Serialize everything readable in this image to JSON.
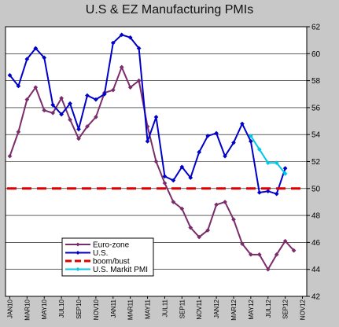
{
  "chart_data": {
    "type": "line",
    "title": "U.S & EZ Manufacturing PMIs",
    "xlabel": "",
    "ylabel": "",
    "x": [
      "JAN10",
      "FEB10",
      "MAR10",
      "APR10",
      "MAY10",
      "JUN10",
      "JUL10",
      "AUG10",
      "SEP10",
      "OCT10",
      "NOV10",
      "DEC10",
      "JAN11",
      "FEB11",
      "MAR11",
      "APR11",
      "MAY11",
      "JUN11",
      "JUL11",
      "AUG11",
      "SEP11",
      "OCT11",
      "NOV11",
      "DEC11",
      "JAN12",
      "FEB12",
      "MAR12",
      "APR12",
      "MAY12",
      "JUN12",
      "JUL12",
      "AUG12",
      "SEP12",
      "OCT12",
      "NOV12"
    ],
    "x_tick_labels": [
      "JAN10",
      "MAR10",
      "MAY10",
      "JUL10",
      "SEP10",
      "NOV10",
      "JAN11",
      "MAR11",
      "MAY11",
      "JUL11",
      "SEP11",
      "NOV11",
      "JAN12",
      "MAR12",
      "MAY12",
      "JUL12",
      "SEP12",
      "NOV12"
    ],
    "ylim": [
      42,
      62
    ],
    "y_ticks": [
      42,
      44,
      46,
      48,
      50,
      52,
      54,
      56,
      58,
      60,
      62
    ],
    "y_axis_side": "right",
    "grid": true,
    "legend_placement": "bottom-left",
    "series": [
      {
        "name": "Euro-zone",
        "color": "#7b2d6b",
        "marker": "diamond",
        "values": [
          52.4,
          54.2,
          56.6,
          57.5,
          55.8,
          55.6,
          56.7,
          55.1,
          53.7,
          54.6,
          55.3,
          57.1,
          57.3,
          59.0,
          57.5,
          58.0,
          54.6,
          52.0,
          50.4,
          49.0,
          48.5,
          47.1,
          46.4,
          46.9,
          48.8,
          49.0,
          47.7,
          45.9,
          45.1,
          45.1,
          44.0,
          45.1,
          46.1,
          45.4,
          null
        ]
      },
      {
        "name": "U.S.",
        "color": "#0000c8",
        "marker": "diamond",
        "values": [
          58.4,
          57.6,
          59.6,
          60.4,
          59.7,
          56.2,
          55.5,
          56.3,
          54.4,
          56.9,
          56.6,
          57.0,
          60.8,
          61.4,
          61.2,
          60.4,
          53.5,
          55.3,
          50.9,
          50.6,
          51.6,
          50.8,
          52.7,
          53.9,
          54.1,
          52.4,
          53.4,
          54.8,
          53.5,
          49.7,
          49.8,
          49.6,
          51.5,
          null,
          null
        ]
      },
      {
        "name": "boom/bust",
        "color": "#dd0000",
        "style": "dashed",
        "values": [
          50,
          50,
          50,
          50,
          50,
          50,
          50,
          50,
          50,
          50,
          50,
          50,
          50,
          50,
          50,
          50,
          50,
          50,
          50,
          50,
          50,
          50,
          50,
          50,
          50,
          50,
          50,
          50,
          50,
          50,
          50,
          50,
          50,
          50,
          50
        ]
      },
      {
        "name": "U.S. Markit PMI",
        "color": "#00c8e6",
        "marker": "diamond",
        "values": [
          null,
          null,
          null,
          null,
          null,
          null,
          null,
          null,
          null,
          null,
          null,
          null,
          null,
          null,
          null,
          null,
          null,
          null,
          null,
          null,
          null,
          null,
          null,
          null,
          null,
          null,
          null,
          null,
          53.9,
          52.9,
          51.9,
          51.9,
          51.1,
          null,
          null
        ]
      }
    ]
  }
}
